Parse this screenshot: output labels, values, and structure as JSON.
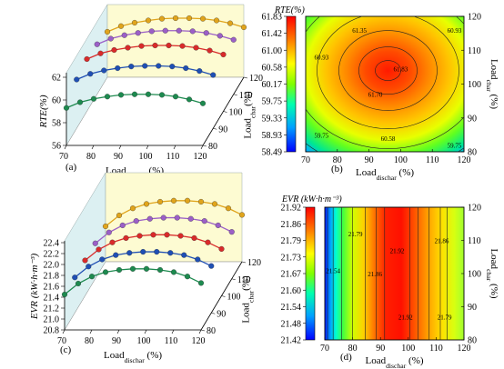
{
  "figure": {
    "panel_labels": [
      "(a)",
      "(b)",
      "(c)",
      "(d)"
    ]
  },
  "chart_data": [
    {
      "id": "a",
      "type": "line",
      "projection": "3d",
      "title": "",
      "xlabel": "Load",
      "xlabel_sub": "dischar",
      "xlabel_unit": " (%)",
      "ylabel": "Load",
      "ylabel_sub": "char",
      "ylabel_unit": "(%)",
      "zlabel": "RTE(%)",
      "x_ticks": [
        "70",
        "80",
        "90",
        "100",
        "110",
        "120"
      ],
      "y_ticks": [
        "80",
        "90",
        "100",
        "110",
        "120"
      ],
      "z_ticks": [
        "56",
        "58",
        "60",
        "62"
      ],
      "xlim": [
        70,
        120
      ],
      "ylim": [
        80,
        120
      ],
      "zlim": [
        56,
        62
      ],
      "x": [
        70,
        75,
        80,
        85,
        90,
        95,
        100,
        105,
        110,
        115,
        120
      ],
      "series": [
        {
          "load_char": 80,
          "color": "#1d8a4f",
          "values": [
            59.3,
            59.8,
            60.1,
            60.3,
            60.45,
            60.5,
            60.5,
            60.45,
            60.3,
            60.05,
            59.7
          ]
        },
        {
          "load_char": 90,
          "color": "#1f4fb4",
          "values": [
            60.3,
            60.8,
            61.1,
            61.3,
            61.45,
            61.5,
            61.5,
            61.45,
            61.3,
            61.05,
            60.7
          ]
        },
        {
          "load_char": 100,
          "color": "#d92a2a",
          "values": [
            60.6,
            61.1,
            61.4,
            61.6,
            61.75,
            61.8,
            61.8,
            61.75,
            61.6,
            61.35,
            61.0
          ]
        },
        {
          "load_char": 110,
          "color": "#9b5fc7",
          "values": [
            60.4,
            60.9,
            61.2,
            61.4,
            61.55,
            61.6,
            61.6,
            61.55,
            61.4,
            61.15,
            60.8
          ]
        },
        {
          "load_char": 120,
          "color": "#e0a41c",
          "values": [
            60.0,
            60.5,
            60.8,
            61.0,
            61.15,
            61.2,
            61.2,
            61.15,
            61.0,
            60.75,
            60.4
          ]
        }
      ]
    },
    {
      "id": "b",
      "type": "heatmap",
      "title": "RTE(%)",
      "xlabel": "Load",
      "xlabel_sub": "dischar",
      "xlabel_unit": " (%)",
      "ylabel": "Load",
      "ylabel_sub": "char",
      "ylabel_unit": " (%)",
      "xlim": [
        70,
        120
      ],
      "ylim": [
        80,
        120
      ],
      "x_ticks": [
        "70",
        "80",
        "90",
        "100",
        "110",
        "120"
      ],
      "y_ticks": [
        "80",
        "90",
        "100",
        "110",
        "120"
      ],
      "colorbar_ticks": [
        "58.49",
        "58.93",
        "59.33",
        "59.75",
        "60.17",
        "60.58",
        "61.00",
        "61.42",
        "61.83"
      ],
      "colorbar_range": [
        58.49,
        61.83
      ],
      "peak": {
        "x": 96,
        "y": 104,
        "value": 61.83
      },
      "contour_levels": [
        59.75,
        60.17,
        60.58,
        60.93,
        61.35,
        61.7
      ],
      "contour_labels": [
        {
          "text": "61.35",
          "x": 87,
          "y": 116
        },
        {
          "text": "60.93",
          "x": 117,
          "y": 116
        },
        {
          "text": "60.93",
          "x": 75,
          "y": 108
        },
        {
          "text": "61.83",
          "x": 100,
          "y": 104.5
        },
        {
          "text": "61.70",
          "x": 92,
          "y": 97
        },
        {
          "text": "59.75",
          "x": 75,
          "y": 85
        },
        {
          "text": "60.58",
          "x": 96,
          "y": 84
        },
        {
          "text": "59.75",
          "x": 117,
          "y": 82
        }
      ]
    },
    {
      "id": "c",
      "type": "line",
      "projection": "3d",
      "title": "",
      "xlabel": "Load",
      "xlabel_sub": "dischar",
      "xlabel_unit": " (%)",
      "ylabel": "Load",
      "ylabel_sub": "char",
      "ylabel_unit": "(%)",
      "zlabel": "EVR (kW·h·m⁻³)",
      "x_ticks": [
        "70",
        "80",
        "90",
        "100",
        "110",
        "120"
      ],
      "y_ticks": [
        "80",
        "90",
        "100",
        "110",
        "120"
      ],
      "z_ticks": [
        "20.8",
        "21.0",
        "21.2",
        "21.4",
        "21.6",
        "21.8",
        "22.0",
        "22.2",
        "22.4"
      ],
      "xlim": [
        70,
        120
      ],
      "ylim": [
        80,
        120
      ],
      "zlim": [
        20.8,
        22.4
      ],
      "x": [
        70,
        75,
        80,
        85,
        90,
        95,
        100,
        105,
        110,
        115,
        120
      ],
      "series": [
        {
          "load_char": 80,
          "color": "#1d8a4f",
          "values": [
            21.45,
            21.65,
            21.78,
            21.86,
            21.9,
            21.92,
            21.92,
            21.9,
            21.86,
            21.78,
            21.66
          ]
        },
        {
          "load_char": 90,
          "color": "#1f4fb4",
          "values": [
            21.45,
            21.65,
            21.78,
            21.86,
            21.9,
            21.92,
            21.92,
            21.9,
            21.86,
            21.78,
            21.66
          ]
        },
        {
          "load_char": 100,
          "color": "#d92a2a",
          "values": [
            21.45,
            21.65,
            21.78,
            21.86,
            21.9,
            21.92,
            21.92,
            21.9,
            21.86,
            21.78,
            21.66
          ]
        },
        {
          "load_char": 110,
          "color": "#9b5fc7",
          "values": [
            21.45,
            21.65,
            21.78,
            21.86,
            21.9,
            21.92,
            21.92,
            21.9,
            21.86,
            21.78,
            21.66
          ]
        },
        {
          "load_char": 120,
          "color": "#e0a41c",
          "values": [
            21.45,
            21.65,
            21.78,
            21.86,
            21.9,
            21.92,
            21.92,
            21.9,
            21.86,
            21.78,
            21.66
          ]
        }
      ]
    },
    {
      "id": "d",
      "type": "heatmap",
      "title": "EVR (kW·h·m⁻³)",
      "xlabel": "Load",
      "xlabel_sub": "dischar",
      "xlabel_unit": " (%)",
      "ylabel": "Load",
      "ylabel_sub": "char",
      "ylabel_unit": " (%)",
      "xlim": [
        70,
        120
      ],
      "ylim": [
        80,
        120
      ],
      "x_ticks": [
        "70",
        "80",
        "90",
        "100",
        "110",
        "120"
      ],
      "y_ticks": [
        "80",
        "90",
        "100",
        "110",
        "120"
      ],
      "colorbar_ticks": [
        "21.42",
        "21.48",
        "21.54",
        "21.60",
        "21.67",
        "21.73",
        "21.79",
        "21.86",
        "21.92"
      ],
      "colorbar_range": [
        21.42,
        21.92
      ],
      "contour_x": [
        71.0,
        73.0,
        76.0,
        80.0,
        84.5,
        88.5,
        91.5,
        100.5,
        103.5,
        107.5,
        111.5,
        114.0
      ],
      "contour_labels": [
        {
          "text": "21.79",
          "x": 81,
          "y": 112
        },
        {
          "text": "21.92",
          "x": 96,
          "y": 107
        },
        {
          "text": "21.86",
          "x": 112,
          "y": 110
        },
        {
          "text": "21.54",
          "x": 73,
          "y": 101
        },
        {
          "text": "21.86",
          "x": 88,
          "y": 100
        },
        {
          "text": "21.92",
          "x": 99,
          "y": 87
        },
        {
          "text": "21.79",
          "x": 113,
          "y": 87
        }
      ]
    }
  ]
}
